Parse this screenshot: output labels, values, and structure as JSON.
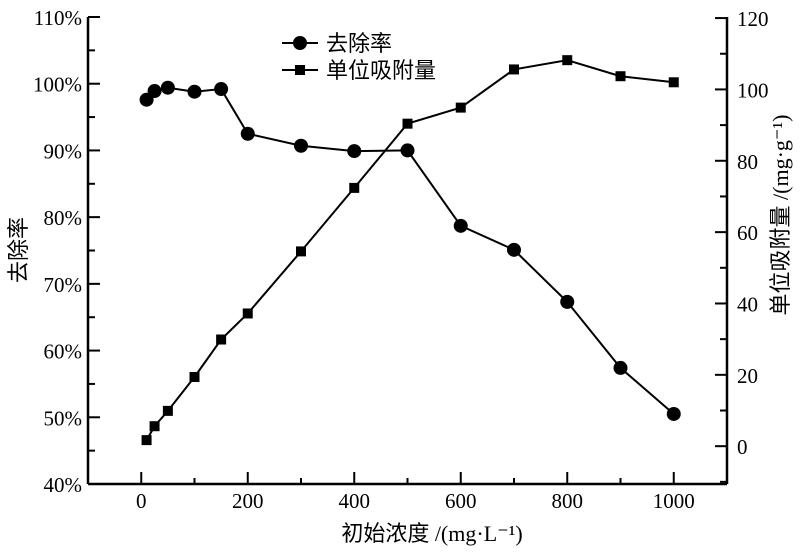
{
  "chart_data": {
    "type": "line",
    "xlabel": "初始浓度 /(mg·L⁻¹)",
    "ylabel_left": "去除率",
    "ylabel_right": "单位吸附量 /(mg·g⁻¹)",
    "xlim": [
      -100,
      1100
    ],
    "ylim_left": [
      40,
      110
    ],
    "ylim_right": [
      -10.6,
      120.3
    ],
    "xticks": [
      0,
      200,
      400,
      600,
      800,
      1000
    ],
    "yticks_left": [
      "40%",
      "50%",
      "60%",
      "70%",
      "80%",
      "90%",
      "100%",
      "110%"
    ],
    "yticks_right": [
      0,
      20,
      40,
      60,
      80,
      100,
      120
    ],
    "grid": false,
    "legend_placement": "top-center",
    "colors": {
      "line": "#000000"
    },
    "x": [
      10,
      25,
      50,
      100,
      150,
      200,
      300,
      400,
      500,
      600,
      700,
      800,
      900,
      1000
    ],
    "series": [
      {
        "name": "去除率",
        "axis": "left",
        "marker": "circle",
        "values": [
          97.6,
          98.9,
          99.4,
          98.8,
          99.2,
          92.5,
          90.7,
          89.9,
          90.0,
          78.7,
          75.1,
          67.3,
          57.4,
          50.5
        ]
      },
      {
        "name": "单位吸附量",
        "axis": "right",
        "marker": "square",
        "values": [
          1.7,
          5.6,
          9.9,
          19.4,
          29.9,
          37.2,
          54.6,
          72.4,
          90.4,
          94.9,
          105.6,
          108.2,
          103.7,
          102.0
        ]
      }
    ]
  }
}
